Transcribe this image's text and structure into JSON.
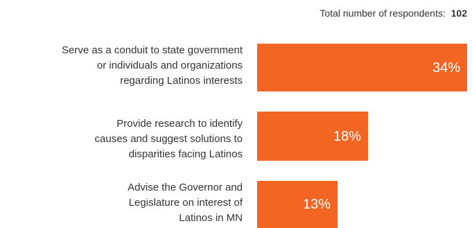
{
  "chart_data": {
    "type": "bar",
    "orientation": "horizontal",
    "annotation": {
      "label": "Total number of respondents:",
      "value": "102"
    },
    "categories": [
      [
        "Serve as a conduit to state government",
        "or individuals and organizations",
        "regarding Latinos interests"
      ],
      [
        "Provide research to identify",
        "causes and suggest solutions to",
        "disparities facing Latinos"
      ],
      [
        "Advise the Governor and",
        "Legislature on interest of",
        "Latinos in MN"
      ]
    ],
    "values": [
      34,
      18,
      13
    ],
    "value_labels": [
      "34%",
      "18%",
      "13%"
    ],
    "unit": "%",
    "xlim": [
      0,
      34
    ],
    "grid": false,
    "colors": {
      "bar": "#f26522",
      "bar_text": "#ffffff",
      "text": "#333333"
    }
  }
}
